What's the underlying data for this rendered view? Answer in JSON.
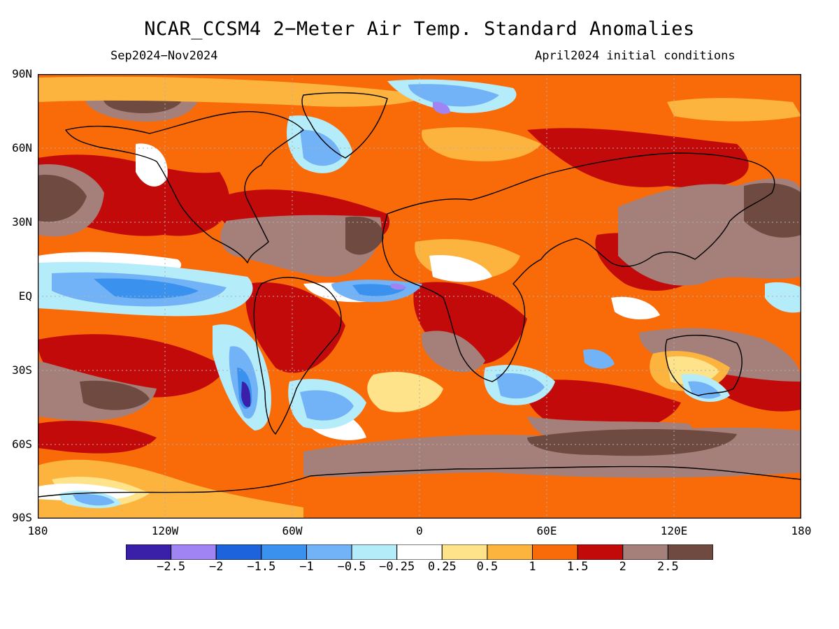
{
  "title": "NCAR_CCSM4 2−Meter Air Temp. Standard Anomalies",
  "subtitle_left": "Sep2024−Nov2024",
  "subtitle_right": "April2024 initial conditions",
  "lat_labels": [
    "90N",
    "60N",
    "30N",
    "EQ",
    "30S",
    "60S",
    "90S"
  ],
  "lon_labels": [
    "180",
    "120W",
    "60W",
    "0",
    "60E",
    "120E",
    "180"
  ],
  "colorbar": {
    "colors": [
      "#3a1fa8",
      "#a184f4",
      "#1c63dc",
      "#3b92ee",
      "#72b3f7",
      "#b5ecf9",
      "#ffffff",
      "#fee38a",
      "#fdb43e",
      "#f96a08",
      "#c20a0a",
      "#a5807a",
      "#6e4a40"
    ],
    "labels": [
      "−2.5",
      "−2",
      "−1.5",
      "−1",
      "−0.5",
      "−0.25",
      "0.25",
      "0.5",
      "1",
      "1.5",
      "2",
      "2.5"
    ]
  }
}
